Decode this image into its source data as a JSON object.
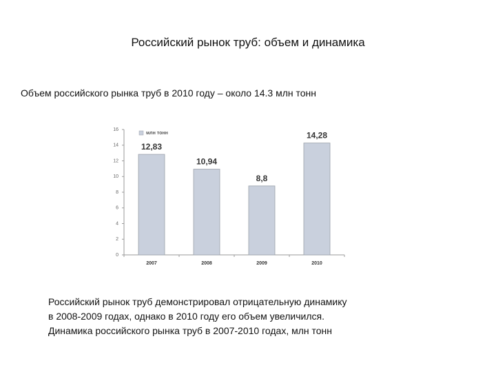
{
  "title": "Российский рынок труб: объем и динамика",
  "intro": "Объем российского рынка труб в 2010 году – около 14.3 млн тонн",
  "chart_data": {
    "type": "bar",
    "categories": [
      "2007",
      "2008",
      "2009",
      "2010"
    ],
    "series": [
      {
        "name": "млн тонн",
        "color": "#c9d0dd",
        "values": [
          12.83,
          10.94,
          8.8,
          14.28
        ],
        "value_labels": [
          "12,83",
          "10,94",
          "8,8",
          "14,28"
        ]
      }
    ],
    "ylim": [
      0,
      16
    ],
    "yticks": [
      0,
      2,
      4,
      6,
      8,
      10,
      12,
      14,
      16
    ],
    "grid": false,
    "legend": "top-left"
  },
  "caption": [
    "Российский рынок труб демонстрировал отрицательную динамику",
    "в 2008-2009 годах, однако в 2010 году его объем увеличился.",
    "Динамика российского рынка труб в 2007-2010 годах, млн тонн"
  ]
}
